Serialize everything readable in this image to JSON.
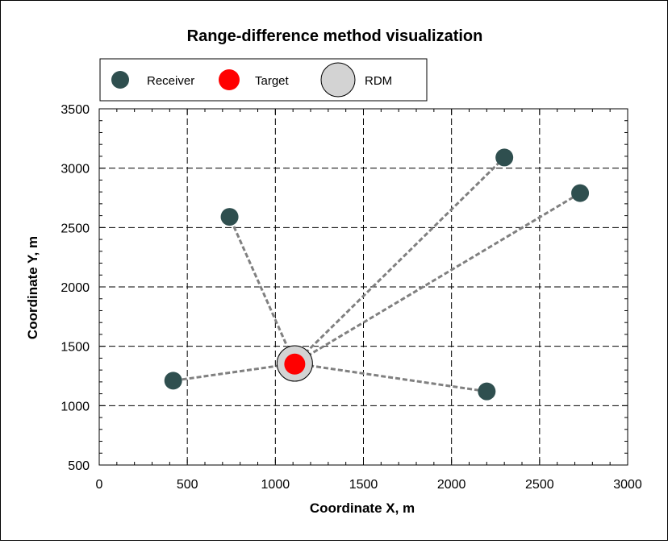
{
  "chart_data": {
    "type": "scatter",
    "title": "Range-difference method visualization",
    "xlabel": "Coordinate X, m",
    "ylabel": "Coordinate Y, m",
    "xlim": [
      0,
      3000
    ],
    "ylim": [
      500,
      3500
    ],
    "x_ticks": [
      0,
      500,
      1000,
      1500,
      2000,
      2500,
      3000
    ],
    "y_ticks": [
      500,
      1000,
      1500,
      2000,
      2500,
      3000,
      3500
    ],
    "grid": true,
    "legend_placement": "top-left",
    "legend": [
      {
        "label": "Receiver",
        "color": "#2f4f4f"
      },
      {
        "label": "Target",
        "color": "#ff0000"
      },
      {
        "label": "RDM",
        "color": "#d3d3d3"
      }
    ],
    "series": [
      {
        "name": "Receiver",
        "color": "#2f4f4f",
        "points": [
          {
            "x": 420,
            "y": 1210
          },
          {
            "x": 740,
            "y": 2590
          },
          {
            "x": 2200,
            "y": 1120
          },
          {
            "x": 2300,
            "y": 3090
          },
          {
            "x": 2730,
            "y": 2790
          }
        ]
      },
      {
        "name": "Target",
        "color": "#ff0000",
        "points": [
          {
            "x": 1110,
            "y": 1350
          }
        ]
      },
      {
        "name": "RDM",
        "color": "#d3d3d3",
        "points": [
          {
            "x": 1110,
            "y": 1355
          }
        ]
      }
    ],
    "lines_color": "#808080"
  }
}
